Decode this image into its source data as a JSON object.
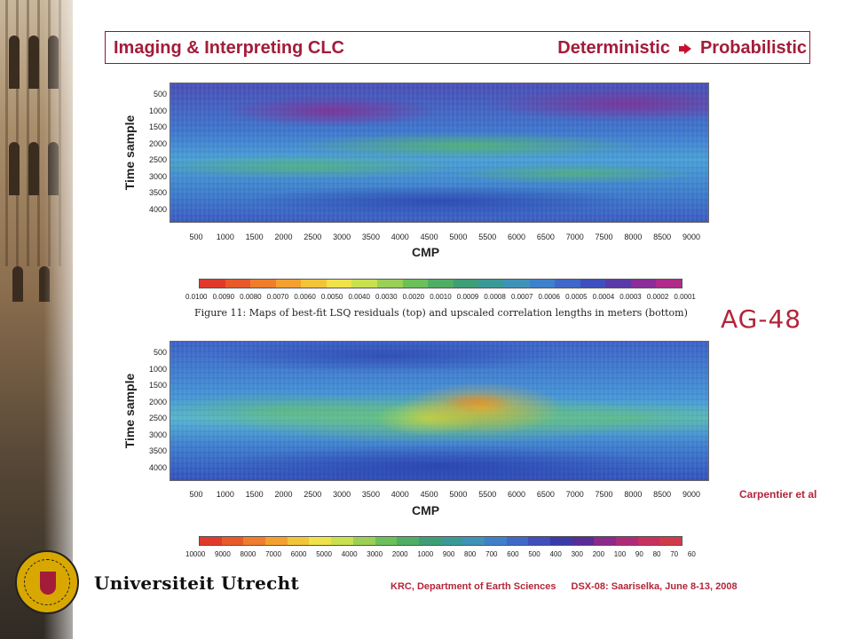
{
  "header": {
    "title_left": "Imaging & Interpreting CLC",
    "deterministic": "Deterministic",
    "probabilistic": "Probabilistic",
    "arrow_icon": "right-arrow-icon"
  },
  "figure": {
    "top_map": {
      "ylabel": "Time sample",
      "yticks": [
        "500",
        "1000",
        "1500",
        "2000",
        "2500",
        "3000",
        "3500",
        "4000"
      ],
      "xlabel": "CMP",
      "xticks": [
        "500",
        "1000",
        "1500",
        "2000",
        "2500",
        "3000",
        "3500",
        "4000",
        "4500",
        "5000",
        "5500",
        "6000",
        "6500",
        "7000",
        "7500",
        "8000",
        "8500",
        "9000"
      ]
    },
    "top_colorbar": {
      "ticks": [
        "0.0100",
        "0.0090",
        "0.0080",
        "0.0070",
        "0.0060",
        "0.0050",
        "0.0040",
        "0.0030",
        "0.0020",
        "0.0010",
        "0.0009",
        "0.0008",
        "0.0007",
        "0.0006",
        "0.0005",
        "0.0004",
        "0.0003",
        "0.0002",
        "0.0001"
      ],
      "colors": [
        "#e03a2a",
        "#e85a2a",
        "#ef7d2b",
        "#f3a02f",
        "#f2c438",
        "#efe24a",
        "#c9e04f",
        "#9ad055",
        "#6cc05a",
        "#4fae63",
        "#3d9e77",
        "#3a9a95",
        "#3e93b8",
        "#3f80cc",
        "#3f68c8",
        "#3f4fbd",
        "#5a3aa8",
        "#8b2c98",
        "#b02a8a"
      ]
    },
    "caption": "Figure 11: Maps of best-fit LSQ residuals (top) and upscaled correlation lengths in meters (bottom)",
    "bottom_map": {
      "ylabel": "Time sample",
      "yticks": [
        "500",
        "1000",
        "1500",
        "2000",
        "2500",
        "3000",
        "3500",
        "4000"
      ],
      "xlabel": "CMP",
      "xticks": [
        "500",
        "1000",
        "1500",
        "2000",
        "2500",
        "3000",
        "3500",
        "4000",
        "4500",
        "5000",
        "5500",
        "6000",
        "6500",
        "7000",
        "7500",
        "8000",
        "8500",
        "9000"
      ]
    },
    "bottom_colorbar": {
      "ticks": [
        "10000",
        "9000",
        "8000",
        "7000",
        "6000",
        "5000",
        "4000",
        "3000",
        "2000",
        "1000",
        "900",
        "800",
        "700",
        "600",
        "500",
        "400",
        "300",
        "200",
        "100",
        "90",
        "80",
        "70",
        "60"
      ],
      "colors": [
        "#e03a2a",
        "#e85a2a",
        "#ef7d2b",
        "#f3a02f",
        "#f2c438",
        "#efe24a",
        "#c9e04f",
        "#9ad055",
        "#6cc05a",
        "#4fae63",
        "#3d9e77",
        "#3a9a95",
        "#3e93b8",
        "#3f80cc",
        "#3f68c8",
        "#3f4fbd",
        "#3a3aa8",
        "#5a2c98",
        "#8b2a8a",
        "#b02a7a",
        "#c83060",
        "#d03a4a"
      ]
    }
  },
  "ag_label": "AG-48",
  "credit": "Carpentier et al",
  "university": "Universiteit Utrecht",
  "footer": {
    "department": "KRC, Department of Earth Sciences",
    "event": "DSX-08: Saariselka, June 8-13, 2008"
  }
}
